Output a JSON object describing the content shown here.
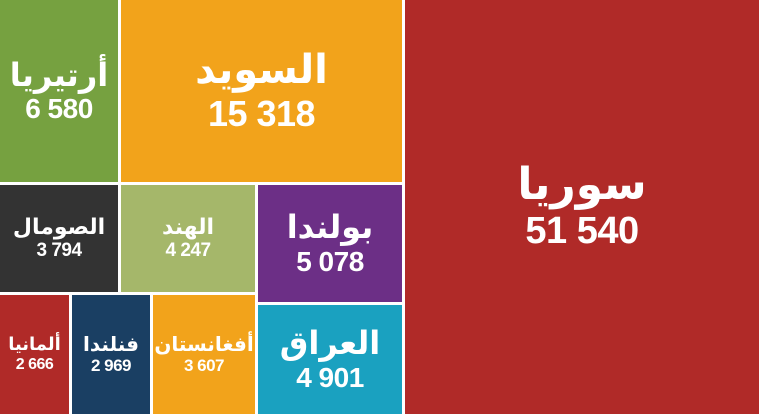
{
  "chart_data": {
    "type": "treemap",
    "items": [
      {
        "name": "سوريا",
        "value": 51540,
        "label": "51 540",
        "color": "#b02a28"
      },
      {
        "name": "السويد",
        "value": 15318,
        "label": "15 318",
        "color": "#f2a31b"
      },
      {
        "name": "أرتيريا",
        "value": 6580,
        "label": "6 580",
        "color": "#76a140"
      },
      {
        "name": "بولندا",
        "value": 5078,
        "label": "5 078",
        "color": "#6c2f86"
      },
      {
        "name": "العراق",
        "value": 4901,
        "label": "4 901",
        "color": "#1aa1c0"
      },
      {
        "name": "الهند",
        "value": 4247,
        "label": "4 247",
        "color": "#a5b76a"
      },
      {
        "name": "الصومال",
        "value": 3794,
        "label": "3 794",
        "color": "#333333"
      },
      {
        "name": "أفغانستان",
        "value": 3607,
        "label": "3 607",
        "color": "#f2a31b"
      },
      {
        "name": "فنلندا",
        "value": 2969,
        "label": "2 969",
        "color": "#1a3f63"
      },
      {
        "name": "ألمانيا",
        "value": 2666,
        "label": "2 666",
        "color": "#b02a28"
      }
    ]
  }
}
